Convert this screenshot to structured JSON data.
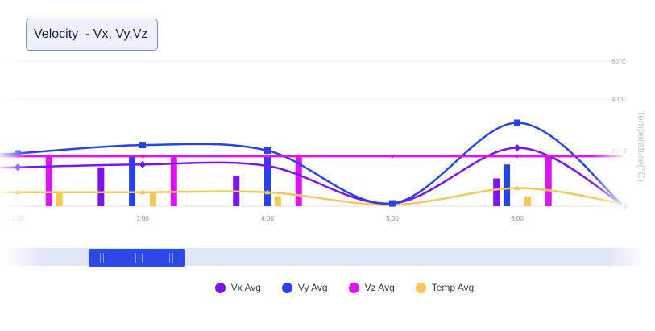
{
  "title": "Velocity  - Vx, Vy,Vz",
  "colors": {
    "vx": "#7b14f0",
    "vy": "#2543e8",
    "vz": "#dc14f2",
    "temp": "#f5c65a"
  },
  "chart_data": {
    "type": "line",
    "y_axis_right": {
      "label": "Temperature(°C)",
      "ticks": [
        "80°C",
        "40°C",
        "20°C",
        "0°C"
      ]
    },
    "x_ticks": [
      "2:30",
      "3:00",
      "4:00",
      "5:00",
      "6:00"
    ],
    "grid": true,
    "legend_position": "bottom",
    "series": [
      {
        "name": "Vx Avg",
        "key": "vx",
        "shape": "diamond",
        "points": [
          [
            "2:30",
            14
          ],
          [
            "3:00",
            15
          ],
          [
            "4:00",
            14.5
          ],
          [
            "5:00",
            1
          ],
          [
            "6:00",
            21
          ],
          [
            "6:50",
            1
          ]
        ],
        "bars": [
          [
            "2:40",
            14
          ],
          [
            "3:45",
            11
          ],
          [
            "5:50",
            10
          ]
        ]
      },
      {
        "name": "Vy Avg",
        "key": "vy",
        "shape": "square",
        "points": [
          [
            "2:30",
            19
          ],
          [
            "3:00",
            22
          ],
          [
            "4:00",
            20
          ],
          [
            "5:00",
            1
          ],
          [
            "6:00",
            30
          ],
          [
            "6:50",
            1
          ]
        ],
        "bars": [
          [
            "2:55",
            18
          ],
          [
            "4:00",
            18
          ],
          [
            "5:55",
            15
          ]
        ]
      },
      {
        "name": "Vz Avg",
        "key": "vz",
        "shape": "triangle-down",
        "points": [
          [
            "2:30",
            18
          ],
          [
            "3:00",
            18
          ],
          [
            "4:00",
            18
          ],
          [
            "5:00",
            18
          ],
          [
            "6:00",
            18
          ],
          [
            "6:50",
            18
          ]
        ],
        "bars": [
          [
            "2:15",
            18
          ],
          [
            "3:15",
            18
          ],
          [
            "4:15",
            18
          ],
          [
            "6:15",
            18
          ]
        ]
      },
      {
        "name": "Temp Avg",
        "key": "temp",
        "shape": "triangle-up",
        "points": [
          [
            "2:30",
            5
          ],
          [
            "3:00",
            5
          ],
          [
            "4:00",
            5
          ],
          [
            "5:00",
            0.5
          ],
          [
            "6:00",
            6.5
          ],
          [
            "6:50",
            1
          ]
        ],
        "bars": [
          [
            "2:20",
            5
          ],
          [
            "3:05",
            5
          ],
          [
            "4:05",
            3.5
          ],
          [
            "6:05",
            3.5
          ]
        ]
      }
    ]
  },
  "slider": {
    "start_fraction": 0.14,
    "end_fraction": 0.29
  },
  "legend": [
    {
      "label": "Vx Avg",
      "key": "vx"
    },
    {
      "label": "Vy Avg",
      "key": "vy"
    },
    {
      "label": "Vz Avg",
      "key": "vz"
    },
    {
      "label": "Temp Avg",
      "key": "temp"
    }
  ]
}
